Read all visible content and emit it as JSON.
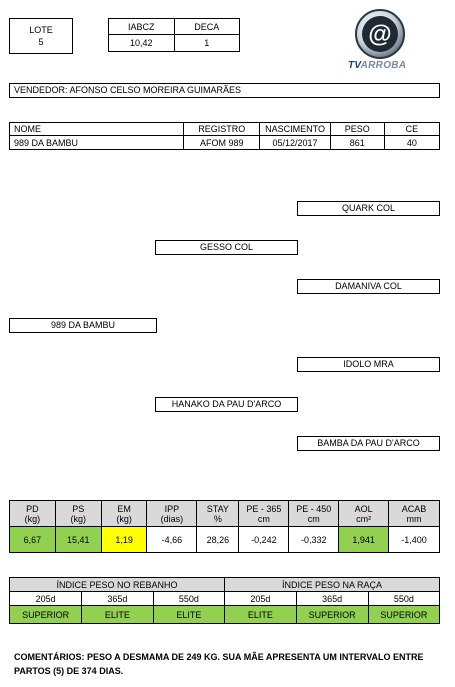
{
  "lote": {
    "label": "LOTE",
    "value": "5"
  },
  "indices_top": {
    "headers": [
      "IABCZ",
      "DECA"
    ],
    "values": [
      "10,42",
      "1"
    ]
  },
  "logo": {
    "text": "TVARROBA",
    "tv": "TV",
    "arroba": "ARROBA",
    "symbol": "@"
  },
  "vendedor": "VENDEDOR: AFONSO CELSO MOREIRA GUIMARÃES",
  "animal": {
    "headers": [
      "NOME",
      "REGISTRO",
      "NASCIMENTO",
      "PESO",
      "CE"
    ],
    "values": [
      "989 DA BAMBU",
      "AFOM 989",
      "05/12/2017",
      "861",
      "40"
    ]
  },
  "pedigree": {
    "pai_pai_pai": "QUARK COL",
    "pai_pai": "GESSO COL",
    "pai_pai_mae": "DAMANIVA COL",
    "animal": "989 DA BAMBU",
    "mae_pai": "IDOLO MRA",
    "mae": "HANAKO DA PAU D'ARCO",
    "mae_mae": "BAMBA DA PAU D'ARCO"
  },
  "deps": {
    "headers": [
      {
        "l1": "PD",
        "l2": "(kg)"
      },
      {
        "l1": "PS",
        "l2": "(kg)"
      },
      {
        "l1": "EM",
        "l2": "(kg)"
      },
      {
        "l1": "IPP",
        "l2": "(dias)"
      },
      {
        "l1": "STAY",
        "l2": "%"
      },
      {
        "l1": "PE - 365",
        "l2": "cm"
      },
      {
        "l1": "PE - 450",
        "l2": "cm"
      },
      {
        "l1": "AOL",
        "l2": "cm²"
      },
      {
        "l1": "ACAB",
        "l2": "mm"
      }
    ],
    "values": [
      "6,67",
      "15,41",
      "1,19",
      "-4,66",
      "28,26",
      "-0,242",
      "-0,332",
      "1,941",
      "-1,400"
    ],
    "highlight": [
      "green",
      "green",
      "yellow",
      "none",
      "none",
      "none",
      "none",
      "green",
      "none"
    ]
  },
  "indices": {
    "rebanho_title": "ÍNDICE PESO NO REBANHO",
    "raca_title": "ÍNDICE PESO NA RAÇA",
    "periods": [
      "205d",
      "365d",
      "550d",
      "205d",
      "365d",
      "550d"
    ],
    "values": [
      "SUPERIOR",
      "ELITE",
      "ELITE",
      "ELITE",
      "SUPERIOR",
      "SUPERIOR"
    ]
  },
  "colors": {
    "green": "#92d050",
    "yellow": "#ffff00",
    "grey": "#d9d9d9"
  },
  "comentarios": "COMENTÁRIOS: PESO A DESMAMA DE 249 KG. SUA MÃE APRESENTA UM INTERVALO ENTRE PARTOS (5) DE 374 DIAS."
}
